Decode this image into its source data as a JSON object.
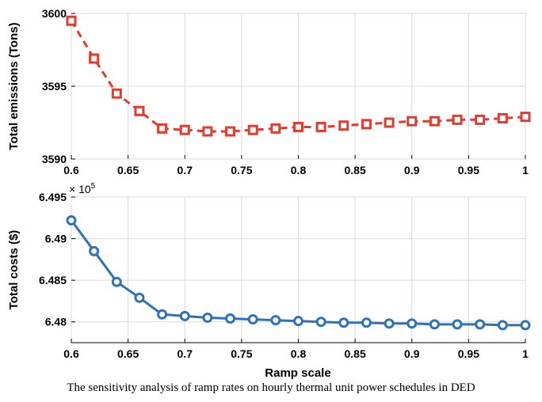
{
  "caption": "The sensitivity analysis of ramp rates on hourly thermal unit power schedules in DED",
  "chart_data": [
    {
      "type": "line",
      "ylabel": "Total emissions (Tons)",
      "xlabel": "",
      "xlim": [
        0.6,
        1.0
      ],
      "ylim": [
        3590,
        3600
      ],
      "xticks": [
        "0.6",
        "0.65",
        "0.7",
        "0.75",
        "0.8",
        "0.85",
        "0.9",
        "0.95",
        "1"
      ],
      "yticks": [
        "3590",
        "3595",
        "3600"
      ],
      "grid": true,
      "color": "#e03c31",
      "line_style": "dashed",
      "marker": "square",
      "x": [
        0.6,
        0.62,
        0.64,
        0.66,
        0.68,
        0.7,
        0.72,
        0.74,
        0.76,
        0.78,
        0.8,
        0.82,
        0.84,
        0.86,
        0.88,
        0.9,
        0.92,
        0.94,
        0.96,
        0.98,
        1.0
      ],
      "values": [
        3599.5,
        3596.9,
        3594.5,
        3593.3,
        3592.1,
        3592.0,
        3591.9,
        3591.9,
        3592.0,
        3592.1,
        3592.2,
        3592.2,
        3592.3,
        3592.4,
        3592.5,
        3592.6,
        3592.6,
        3592.7,
        3592.7,
        3592.8,
        3592.9
      ]
    },
    {
      "type": "line",
      "ylabel": "Total costs ($)",
      "xlabel": "Ramp scale",
      "exponent_label": "× 10",
      "exponent_power": "5",
      "xlim": [
        0.6,
        1.0
      ],
      "ylim": [
        6.4775,
        6.495
      ],
      "xticks": [
        "0.6",
        "0.65",
        "0.7",
        "0.75",
        "0.8",
        "0.85",
        "0.9",
        "0.95",
        "1"
      ],
      "yticks": [
        "6.48",
        "6.485",
        "6.49",
        "6.495"
      ],
      "grid": true,
      "color": "#2e72b8",
      "line_style": "solid",
      "marker": "circle",
      "x": [
        0.6,
        0.62,
        0.64,
        0.66,
        0.68,
        0.7,
        0.72,
        0.74,
        0.76,
        0.78,
        0.8,
        0.82,
        0.84,
        0.86,
        0.88,
        0.9,
        0.92,
        0.94,
        0.96,
        0.98,
        1.0
      ],
      "values": [
        6.4922,
        6.4885,
        6.4848,
        6.4829,
        6.4809,
        6.4807,
        6.4805,
        6.4804,
        6.4803,
        6.4802,
        6.4801,
        6.48,
        6.4799,
        6.4799,
        6.4798,
        6.4798,
        6.4797,
        6.4797,
        6.4797,
        6.4796,
        6.4796
      ]
    }
  ]
}
